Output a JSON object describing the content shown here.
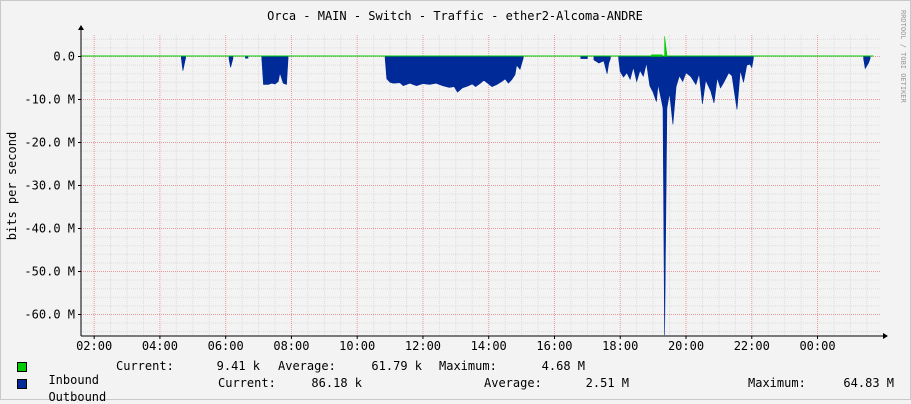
{
  "chart_data": {
    "type": "area",
    "title": "Orca - MAIN - Switch - Traffic - ether2-Alcoma-ANDRE",
    "ylabel": "bits per second",
    "watermark": "RRDTOOL / TOBI OETIKER",
    "x_ticks": [
      "02:00",
      "04:00",
      "06:00",
      "08:00",
      "10:00",
      "12:00",
      "14:00",
      "16:00",
      "18:00",
      "20:00",
      "22:00",
      "00:00"
    ],
    "y_ticks": [
      {
        "value": 0,
        "label": "0.0"
      },
      {
        "value": -10,
        "label": "-10.0 M"
      },
      {
        "value": -20,
        "label": "-20.0 M"
      },
      {
        "value": -30,
        "label": "-30.0 M"
      },
      {
        "value": -40,
        "label": "-40.0 M"
      },
      {
        "value": -50,
        "label": "-50.0 M"
      },
      {
        "value": -60,
        "label": "-60.0 M"
      }
    ],
    "ylim": [
      -65,
      5
    ],
    "xlim": [
      1.6,
      25.9
    ],
    "grid": true,
    "colors": {
      "inbound": "#00cc00",
      "outbound": "#002a97",
      "grid_major": "#e89a9a",
      "grid_minor": "#dddddd"
    },
    "series": [
      {
        "name": "Inbound",
        "color": "#00cc00",
        "points": [
          [
            18.95,
            0.4
          ],
          [
            19.28,
            0.4
          ],
          [
            19.35,
            4.7
          ],
          [
            19.42,
            0.4
          ],
          [
            19.5,
            0.4
          ]
        ]
      },
      {
        "name": "Outbound",
        "color": "#002a97",
        "points": [
          [
            4.65,
            -0.3
          ],
          [
            4.7,
            -3.3
          ],
          [
            4.78,
            -0.3
          ],
          [
            6.1,
            -0.5
          ],
          [
            6.15,
            -2.5
          ],
          [
            6.22,
            -0.5
          ],
          [
            6.6,
            -0.4
          ],
          [
            6.68,
            -0.4
          ],
          [
            7.1,
            -0.5
          ],
          [
            7.15,
            -6.5
          ],
          [
            7.3,
            -6.5
          ],
          [
            7.4,
            -6.2
          ],
          [
            7.5,
            -6.4
          ],
          [
            7.6,
            -5.8
          ],
          [
            7.65,
            -3.8
          ],
          [
            7.75,
            -6.2
          ],
          [
            7.85,
            -6.5
          ],
          [
            7.9,
            -0.3
          ],
          [
            10.85,
            -0.3
          ],
          [
            10.9,
            -5.2
          ],
          [
            11.0,
            -6.0
          ],
          [
            11.1,
            -6.2
          ],
          [
            11.3,
            -6.1
          ],
          [
            11.4,
            -6.8
          ],
          [
            11.6,
            -6.2
          ],
          [
            11.8,
            -6.8
          ],
          [
            12.0,
            -6.3
          ],
          [
            12.2,
            -6.5
          ],
          [
            12.4,
            -6.2
          ],
          [
            12.6,
            -6.8
          ],
          [
            12.8,
            -7.2
          ],
          [
            12.95,
            -7.0
          ],
          [
            13.05,
            -8.3
          ],
          [
            13.2,
            -7.3
          ],
          [
            13.35,
            -6.9
          ],
          [
            13.5,
            -6.4
          ],
          [
            13.6,
            -7.0
          ],
          [
            13.75,
            -6.2
          ],
          [
            13.85,
            -5.5
          ],
          [
            14.0,
            -6.4
          ],
          [
            14.1,
            -7.0
          ],
          [
            14.25,
            -6.5
          ],
          [
            14.4,
            -5.8
          ],
          [
            14.5,
            -5.2
          ],
          [
            14.6,
            -6.2
          ],
          [
            14.7,
            -5.4
          ],
          [
            14.8,
            -4.2
          ],
          [
            14.85,
            -2.0
          ],
          [
            14.95,
            -3.0
          ],
          [
            15.05,
            -0.4
          ],
          [
            16.8,
            -0.5
          ],
          [
            17.0,
            -0.5
          ],
          [
            17.2,
            -0.8
          ],
          [
            17.35,
            -1.5
          ],
          [
            17.5,
            -1.0
          ],
          [
            17.6,
            -4.0
          ],
          [
            17.65,
            -1.6
          ],
          [
            17.7,
            -0.5
          ],
          [
            17.95,
            -0.4
          ],
          [
            18.0,
            -3.5
          ],
          [
            18.1,
            -4.8
          ],
          [
            18.2,
            -3.8
          ],
          [
            18.3,
            -5.3
          ],
          [
            18.4,
            -2.5
          ],
          [
            18.5,
            -5.8
          ],
          [
            18.6,
            -3.2
          ],
          [
            18.7,
            -4.6
          ],
          [
            18.8,
            -1.5
          ],
          [
            18.9,
            -6.8
          ],
          [
            19.0,
            -8.3
          ],
          [
            19.1,
            -10.5
          ],
          [
            19.15,
            -6.5
          ],
          [
            19.25,
            -10.0
          ],
          [
            19.3,
            -12.0
          ],
          [
            19.35,
            -64.8
          ],
          [
            19.42,
            -12.0
          ],
          [
            19.5,
            -8.5
          ],
          [
            19.6,
            -15.8
          ],
          [
            19.7,
            -7.0
          ],
          [
            19.8,
            -4.5
          ],
          [
            19.9,
            -5.8
          ],
          [
            20.0,
            -3.8
          ],
          [
            20.15,
            -4.7
          ],
          [
            20.3,
            -6.5
          ],
          [
            20.4,
            -4.0
          ],
          [
            20.5,
            -11.0
          ],
          [
            20.6,
            -5.5
          ],
          [
            20.75,
            -8.0
          ],
          [
            20.85,
            -10.8
          ],
          [
            20.95,
            -5.0
          ],
          [
            21.05,
            -7.3
          ],
          [
            21.15,
            -6.0
          ],
          [
            21.3,
            -3.8
          ],
          [
            21.4,
            -4.5
          ],
          [
            21.55,
            -12.3
          ],
          [
            21.65,
            -3.2
          ],
          [
            21.75,
            -6.0
          ],
          [
            21.85,
            -2.0
          ],
          [
            21.95,
            -1.8
          ],
          [
            22.0,
            -2.6
          ],
          [
            22.05,
            -0.4
          ],
          [
            25.4,
            -0.5
          ],
          [
            25.45,
            -2.8
          ],
          [
            25.55,
            -1.5
          ],
          [
            25.6,
            -0.5
          ]
        ]
      }
    ]
  },
  "legend": {
    "inbound": {
      "name": "Inbound",
      "current_label": "Current:",
      "current": "9.41 k",
      "average_label": "Average:",
      "average": "61.79 k",
      "maximum_label": "Maximum:",
      "maximum": "4.68 M"
    },
    "outbound": {
      "name": "Outbound",
      "current_label": "Current:",
      "current": "86.18 k",
      "average_label": "Average:",
      "average": "2.51 M",
      "maximum_label": "Maximum:",
      "maximum": "64.83 M"
    }
  }
}
